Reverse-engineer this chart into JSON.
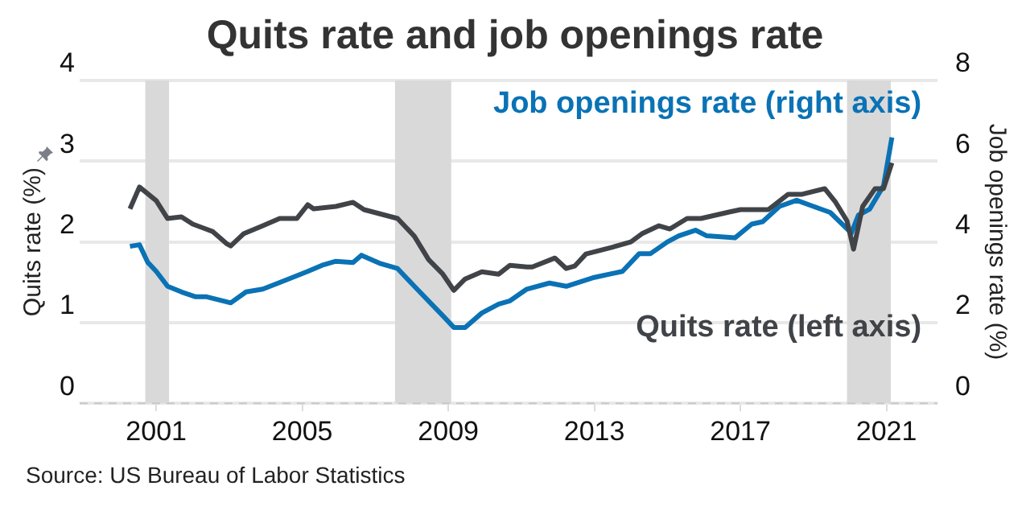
{
  "chart_data": {
    "type": "line",
    "title": "Quits rate and job openings rate",
    "ylabel": "Quits rate (%)",
    "y2label": "Job openings rate (%)",
    "xlim": [
      1998.9,
      2022.4
    ],
    "xticks": [
      2001,
      2005,
      2009,
      2013,
      2017,
      2021
    ],
    "ylim": [
      0,
      4
    ],
    "yticks": [
      0,
      1,
      2,
      3,
      4
    ],
    "y2lim": [
      0,
      8
    ],
    "y2ticks": [
      0,
      2,
      4,
      6,
      8
    ],
    "grid": "y",
    "legend": false,
    "marker": "none",
    "line_style": "solid",
    "bands": [
      {
        "axis": "x",
        "from": 2000.7,
        "to": 2001.35,
        "color": "#d9d9d9"
      },
      {
        "axis": "x",
        "from": 2007.54,
        "to": 2009.08,
        "color": "#d9d9d9"
      },
      {
        "axis": "x",
        "from": 2019.92,
        "to": 2021.12,
        "color": "#d9d9d9"
      }
    ],
    "series": [
      {
        "name": "Quits rate (left axis)",
        "color": "#404347",
        "x": [
          2000.28,
          2000.54,
          2001.0,
          2001.31,
          2001.69,
          2002.0,
          2002.54,
          2002.92,
          2003.04,
          2003.39,
          2003.92,
          2004.38,
          2004.85,
          2005.15,
          2005.31,
          2005.92,
          2006.39,
          2006.69,
          2007.61,
          2008.07,
          2008.46,
          2008.85,
          2009.15,
          2009.46,
          2009.92,
          2010.38,
          2010.69,
          2011.15,
          2011.3,
          2011.92,
          2012.23,
          2012.46,
          2012.77,
          2013.46,
          2014.0,
          2014.3,
          2014.77,
          2015.07,
          2015.54,
          2015.92,
          2016.69,
          2017.0,
          2017.31,
          2017.77,
          2018.31,
          2018.69,
          2019.31,
          2019.61,
          2019.92,
          2020.1,
          2020.35,
          2020.69,
          2020.92,
          2021.15
        ],
        "values": [
          2.41,
          2.68,
          2.51,
          2.29,
          2.31,
          2.22,
          2.13,
          1.98,
          1.95,
          2.1,
          2.2,
          2.29,
          2.29,
          2.46,
          2.41,
          2.44,
          2.49,
          2.4,
          2.29,
          2.07,
          1.78,
          1.6,
          1.4,
          1.54,
          1.63,
          1.6,
          1.71,
          1.69,
          1.69,
          1.8,
          1.67,
          1.7,
          1.85,
          1.93,
          2.0,
          2.1,
          2.2,
          2.16,
          2.29,
          2.29,
          2.37,
          2.4,
          2.4,
          2.4,
          2.59,
          2.59,
          2.66,
          2.49,
          2.26,
          1.91,
          2.44,
          2.66,
          2.66,
          2.98
        ]
      },
      {
        "name": "Job openings rate (right axis)",
        "axis": "y2",
        "color": "#0a72b5",
        "x": [
          2000.28,
          2000.54,
          2000.77,
          2001.0,
          2001.31,
          2001.69,
          2002.08,
          2002.38,
          2002.69,
          2003.04,
          2003.46,
          2003.92,
          2004.54,
          2005.15,
          2005.54,
          2005.92,
          2006.39,
          2006.62,
          2007.15,
          2007.61,
          2008.07,
          2008.54,
          2008.85,
          2009.15,
          2009.46,
          2009.92,
          2010.38,
          2010.69,
          2011.15,
          2011.77,
          2012.23,
          2013.0,
          2013.77,
          2014.23,
          2014.54,
          2015.0,
          2015.31,
          2015.77,
          2016.08,
          2016.85,
          2017.31,
          2017.61,
          2018.07,
          2018.54,
          2019.0,
          2019.46,
          2020.04,
          2020.23,
          2020.54,
          2020.92,
          2021.15
        ],
        "values": [
          3.89,
          3.93,
          3.49,
          3.27,
          2.9,
          2.76,
          2.64,
          2.64,
          2.57,
          2.49,
          2.76,
          2.83,
          3.05,
          3.27,
          3.42,
          3.52,
          3.49,
          3.67,
          3.46,
          3.34,
          2.9,
          2.46,
          2.17,
          1.88,
          1.88,
          2.24,
          2.46,
          2.54,
          2.83,
          2.98,
          2.9,
          3.12,
          3.27,
          3.71,
          3.71,
          4.0,
          4.15,
          4.29,
          4.15,
          4.1,
          4.44,
          4.5,
          4.88,
          5.03,
          4.88,
          4.73,
          4.22,
          4.66,
          4.81,
          5.39,
          6.59
        ]
      }
    ],
    "annotations": [
      "Source: US Bureau of Labor Statistics"
    ]
  }
}
